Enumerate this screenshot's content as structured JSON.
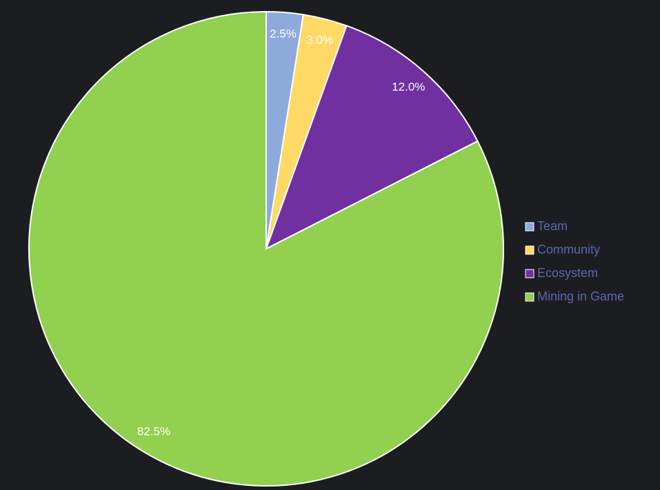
{
  "chart_data": {
    "type": "pie",
    "categories": [
      "Team",
      "Community",
      "Ecosystem",
      "Mining in Game"
    ],
    "values": [
      2.5,
      3.0,
      12.0,
      82.5
    ],
    "value_labels": [
      "2.5%",
      "3.0%",
      "12.0%",
      "82.5%"
    ],
    "colors": [
      "#8eaadb",
      "#ffd966",
      "#7030a0",
      "#92d050"
    ],
    "legend": "right"
  }
}
